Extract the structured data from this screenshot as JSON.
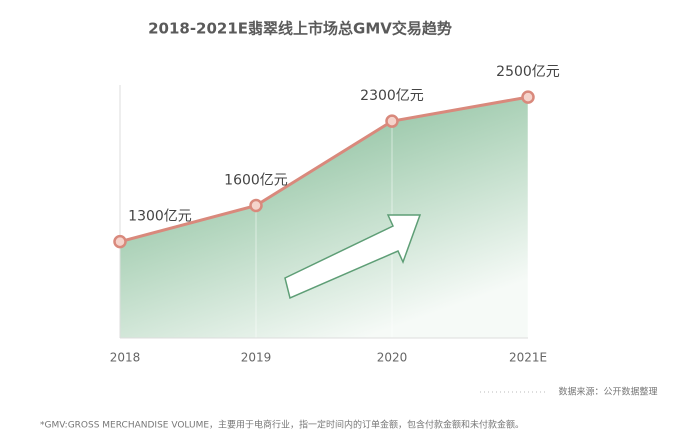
{
  "chart_data": {
    "type": "area",
    "title": "2018-2021E翡翠线上市场总GMV交易趋势",
    "categories": [
      "2018",
      "2019",
      "2020",
      "2021E"
    ],
    "values": [
      1300,
      1600,
      2300,
      2500
    ],
    "value_labels": [
      "1300亿元",
      "1600亿元",
      "2300亿元",
      "2500亿元"
    ],
    "ylim": [
      500,
      2700
    ],
    "color": "#d9897c",
    "source": "数据来源：公开数据整理",
    "footnote": "*GMV:GROSS MERCHANDISE VOLUME，主要用于电商行业，指一定时间内的订单金额，包含付款金额和未付款金额。"
  }
}
